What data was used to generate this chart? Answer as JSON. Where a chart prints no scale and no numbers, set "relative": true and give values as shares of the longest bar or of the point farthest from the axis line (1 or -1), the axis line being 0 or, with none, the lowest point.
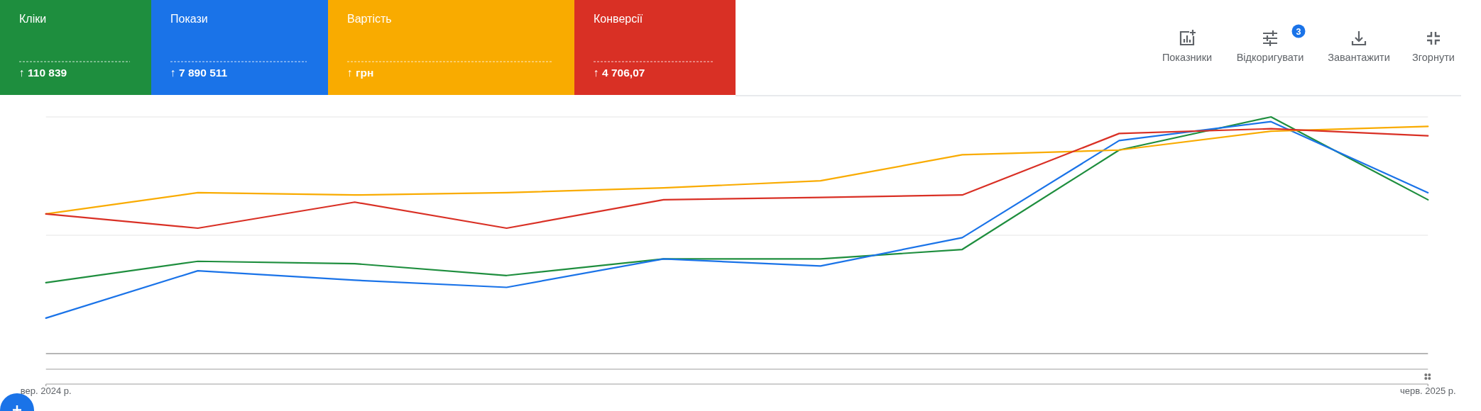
{
  "chart_data": {
    "type": "line",
    "relative": true,
    "x": [
      "2024-09",
      "2024-10",
      "2024-11",
      "2024-12",
      "2025-01",
      "2025-02",
      "2025-03",
      "2025-04",
      "2025-05",
      "2025-06"
    ],
    "xlim": [
      "2024-09",
      "2025-06"
    ],
    "xticks": [
      {
        "value": "2024-09",
        "label": "вер. 2024 р."
      },
      {
        "value": "2025-06",
        "label": "черв. 2025 р."
      }
    ],
    "series": [
      {
        "name": "Кліки",
        "color": "#1e8e3e",
        "values": [
          0.3,
          0.39,
          0.38,
          0.33,
          0.4,
          0.4,
          0.44,
          0.86,
          1,
          0.65
        ]
      },
      {
        "name": "Покази",
        "color": "#1a73e8",
        "values": [
          0.15,
          0.35,
          0.31,
          0.28,
          0.4,
          0.37,
          0.49,
          0.9,
          0.98,
          0.68
        ]
      },
      {
        "name": "Вартість",
        "color": "#f9ab00",
        "values": [
          0.59,
          0.68,
          0.67,
          0.68,
          0.7,
          0.73,
          0.84,
          0.86,
          0.94,
          0.96
        ]
      },
      {
        "name": "Конверсії",
        "color": "#d93025",
        "values": [
          0.59,
          0.53,
          0.64,
          0.53,
          0.65,
          0.66,
          0.67,
          0.93,
          0.95,
          0.92
        ]
      }
    ],
    "ref_lines": [
      {
        "axis": "y",
        "value": 0.5,
        "color": "#e6e6e6"
      },
      {
        "axis": "y",
        "value": 1,
        "color": "#e6e6e6"
      }
    ],
    "legend": "top left",
    "annotations": [
      "↑ 110 839",
      "↑ 7 890 511",
      "↑ грн",
      "↑ 4 706,07",
      "Показники",
      "Відкоригувати",
      "Завантажити",
      "Згорнути",
      "3"
    ]
  }
}
